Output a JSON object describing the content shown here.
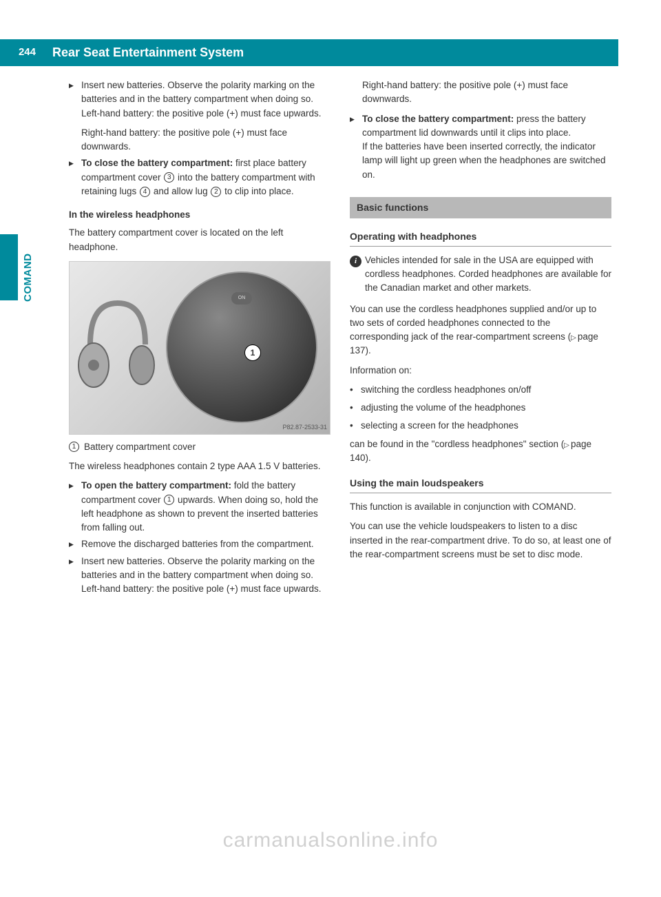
{
  "page_number": "244",
  "header_title": "Rear Seat Entertainment System",
  "side_label": "COMAND",
  "left_column": {
    "items1": [
      {
        "text": "Insert new batteries. Observe the polarity marking on the batteries and in the battery compartment when doing so.\nLeft-hand battery: the positive pole (+) must face upwards.",
        "extra": "Right-hand battery: the positive pole (+) must face downwards."
      },
      {
        "bold_prefix": "To close the battery compartment:",
        "text": " first place battery compartment cover ",
        "ref1": "3",
        "text2": " into the battery compartment with retaining lugs ",
        "ref2": "4",
        "text3": " and allow lug ",
        "ref3": "2",
        "text4": " to clip into place."
      }
    ],
    "subheading1": "In the wireless headphones",
    "para1": "The battery compartment cover is located on the left headphone.",
    "figure_code": "P82.87-2533-31",
    "figure_num": "1",
    "caption_num": "1",
    "caption_text": "Battery compartment cover",
    "para2": "The wireless headphones contain 2 type AAA 1.5 V batteries.",
    "items2": [
      {
        "bold_prefix": "To open the battery compartment:",
        "text": " fold the battery compartment cover ",
        "ref": "1",
        "text2": " upwards. When doing so, hold the left headphone as shown to prevent the inserted batteries from falling out."
      },
      {
        "text": "Remove the discharged batteries from the compartment."
      },
      {
        "text": "Insert new batteries. Observe the polarity marking on the batteries and in the battery compartment when doing so.\nLeft-hand battery: the positive pole (+) must face upwards."
      }
    ]
  },
  "right_column": {
    "para_top": "Right-hand battery: the positive pole (+) must face downwards.",
    "item_close": {
      "bold_prefix": "To close the battery compartment:",
      "text": " press the battery compartment lid downwards until it clips into place.\nIf the batteries have been inserted correctly, the indicator lamp will light up green when the headphones are switched on."
    },
    "section_header": "Basic functions",
    "subsection1": "Operating with headphones",
    "info_text": "Vehicles intended for sale in the USA are equipped with cordless headphones. Corded headphones are available for the Canadian market and other markets.",
    "para3_a": "You can use the cordless headphones supplied and/or up to two sets of corded headphones connected to the corresponding jack of the rear-compartment screens (",
    "para3_ref": "page 137",
    "para3_b": ").",
    "para4": "Information on:",
    "bullets": [
      "switching the cordless headphones on/off",
      "adjusting the volume of the headphones",
      "selecting a screen for the headphones"
    ],
    "para5_a": "can be found in the \"cordless headphones\" section (",
    "para5_ref": "page 140",
    "para5_b": ").",
    "subsection2": "Using the main loudspeakers",
    "para6": "This function is available in conjunction with COMAND.",
    "para7": "You can use the vehicle loudspeakers to listen to a disc inserted in the rear-compartment drive. To do so, at least one of the rear-compartment screens must be set to disc mode."
  },
  "watermark": "carmanualsonline.info"
}
